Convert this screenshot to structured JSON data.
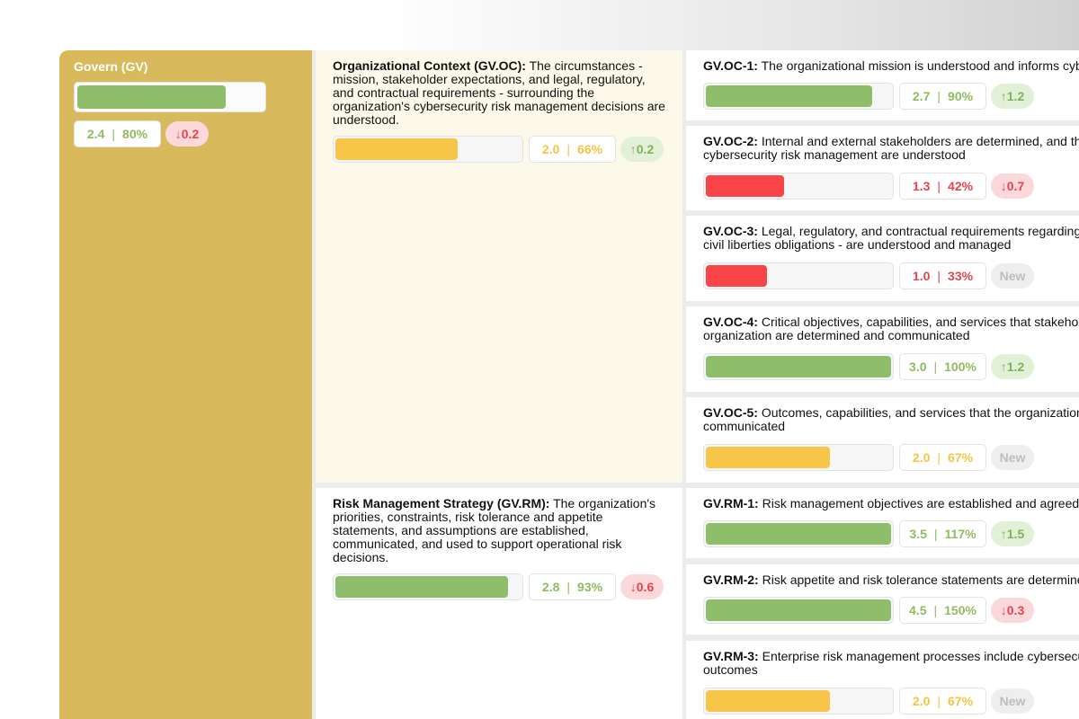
{
  "govern": {
    "title": "Govern (GV)",
    "progress": 0.8,
    "score": "2.4",
    "percent": "80%",
    "delta": "↓0.2",
    "delta_dir": "down",
    "level": "green"
  },
  "categories": [
    {
      "code": "Organizational Context (GV.OC):",
      "text": " The circumstances - mission, stakeholder expectations, and legal, regulatory, and contractual requirements - surrounding the organization's cybersecurity risk management decisions are understood.",
      "progress": 0.66,
      "score": "2.0",
      "percent": "66%",
      "delta": "↑0.2",
      "delta_dir": "up",
      "level": "yellow"
    },
    {
      "code": "Risk Management Strategy (GV.RM):",
      "text": " The organization's priorities, constraints, risk tolerance and appetite statements, and assumptions are established, communicated, and used to support operational risk decisions.",
      "progress": 0.93,
      "score": "2.8",
      "percent": "93%",
      "delta": "↓0.6",
      "delta_dir": "down",
      "level": "green"
    }
  ],
  "subcategories": [
    {
      "code": "GV.OC-1:",
      "line1": " The organizational mission is understood and informs cybersecurity risk management",
      "line2": "",
      "progress": 0.9,
      "score": "2.7",
      "percent": "90%",
      "delta": "↑1.2",
      "delta_dir": "up",
      "level": "green"
    },
    {
      "code": "GV.OC-2:",
      "line1": " Internal and external stakeholders are determined, and their needs and expectations regarding",
      "line2": "cybersecurity risk management are understood",
      "progress": 0.42,
      "score": "1.3",
      "percent": "42%",
      "delta": "↓0.7",
      "delta_dir": "down",
      "level": "red"
    },
    {
      "code": "GV.OC-3:",
      "line1": " Legal, regulatory, and contractual requirements regarding cybersecurity - including privacy and",
      "line2": "civil liberties obligations - are understood and managed",
      "progress": 0.33,
      "score": "1.0",
      "percent": "33%",
      "delta": "New",
      "delta_dir": "new",
      "level": "red"
    },
    {
      "code": "GV.OC-4:",
      "line1": " Critical objectives, capabilities, and services that stakeholders depend on or expect from the",
      "line2": "organization are determined and communicated",
      "progress": 1.0,
      "score": "3.0",
      "percent": "100%",
      "delta": "↑1.2",
      "delta_dir": "up",
      "level": "green"
    },
    {
      "code": "GV.OC-5:",
      "line1": " Outcomes, capabilities, and services that the organization depends on are understood and",
      "line2": "communicated",
      "progress": 0.67,
      "score": "2.0",
      "percent": "67%",
      "delta": "New",
      "delta_dir": "new",
      "level": "yellow"
    },
    {
      "code": "GV.RM-1:",
      "line1": " Risk management objectives are established and agreed to by organizational stakeholders",
      "line2": "",
      "progress": 1.0,
      "score": "3.5",
      "percent": "117%",
      "delta": "↑1.5",
      "delta_dir": "up",
      "level": "green"
    },
    {
      "code": "GV.RM-2:",
      "line1": " Risk appetite and risk tolerance statements are determined, communicated, and maintained",
      "line2": "",
      "progress": 1.0,
      "score": "4.5",
      "percent": "150%",
      "delta": "↓0.3",
      "delta_dir": "down",
      "level": "green"
    },
    {
      "code": "GV.RM-3:",
      "line1": " Enterprise risk management processes include cybersecurity risk management activities and",
      "line2": "outcomes",
      "progress": 0.67,
      "score": "2.0",
      "percent": "67%",
      "delta": "New",
      "delta_dir": "new",
      "level": "yellow"
    }
  ],
  "separator": "|"
}
